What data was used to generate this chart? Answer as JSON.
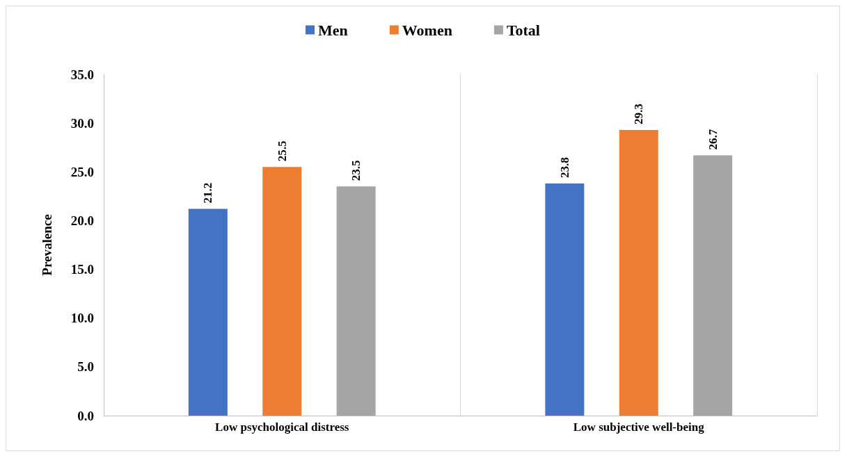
{
  "chart_data": {
    "type": "bar",
    "ylabel": "Prevalence",
    "categories": [
      "Low psychological distress",
      "Low subjective well-being"
    ],
    "series": [
      {
        "name": "Men",
        "color": "#4472c4",
        "values": [
          21.2,
          23.8
        ]
      },
      {
        "name": "Women",
        "color": "#ed7d31",
        "values": [
          25.5,
          29.3
        ]
      },
      {
        "name": "Total",
        "color": "#a5a5a5",
        "values": [
          23.5,
          26.7
        ]
      }
    ],
    "ylim": [
      0,
      35
    ],
    "yticks": [
      {
        "value": 0,
        "label": "0.0"
      },
      {
        "value": 5,
        "label": "5.0"
      },
      {
        "value": 10,
        "label": "10.0"
      },
      {
        "value": 15,
        "label": "15.0"
      },
      {
        "value": 20,
        "label": "20.0"
      },
      {
        "value": 25,
        "label": "25.0"
      },
      {
        "value": 30,
        "label": "30.0"
      },
      {
        "value": 35,
        "label": "35.0"
      }
    ],
    "grid": "x",
    "legend": "top",
    "data_labels": true
  }
}
